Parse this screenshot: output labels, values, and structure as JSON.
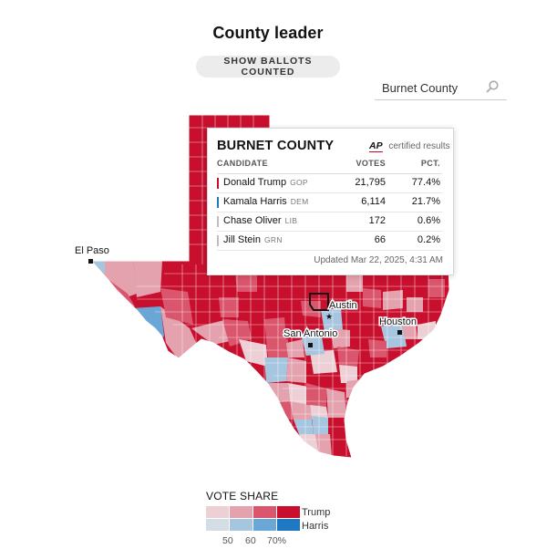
{
  "header": {
    "title": "County leader"
  },
  "toggle": {
    "label": "SHOW BALLOTS COUNTED"
  },
  "search": {
    "value": "Burnet County",
    "icon": "search-icon"
  },
  "map": {
    "cities": {
      "el_paso": "El Paso",
      "austin": "Austin",
      "san_antonio": "San Antonio",
      "houston": "Houston"
    },
    "colors": {
      "trump_strong": "#c8102e",
      "trump_mid": "#d9566d",
      "trump_light": "#e3a2ae",
      "trump_faint": "#ecd0d6",
      "harris_faint": "#d3dde6",
      "harris_light": "#a6c6e0",
      "harris_mid": "#6aa6d6",
      "harris_strong": "#1e78c2",
      "highlight_outline": "#121212"
    },
    "highlighted_county": "Burnet County"
  },
  "tooltip": {
    "county": "BURNET COUNTY",
    "ap_logo": "AP",
    "certified": "certified results",
    "columns": {
      "candidate": "CANDIDATE",
      "votes": "VOTES",
      "pct": "PCT."
    },
    "rows": [
      {
        "name": "Donald Trump",
        "party": "GOP",
        "votes": "21,795",
        "pct": "77.4%",
        "color": "#c8102e"
      },
      {
        "name": "Kamala Harris",
        "party": "DEM",
        "votes": "6,114",
        "pct": "21.7%",
        "color": "#1e78c2"
      },
      {
        "name": "Chase Oliver",
        "party": "LIB",
        "votes": "172",
        "pct": "0.6%",
        "color": "#bfbfbf"
      },
      {
        "name": "Jill Stein",
        "party": "GRN",
        "votes": "66",
        "pct": "0.2%",
        "color": "#bfbfbf"
      }
    ],
    "updated": "Updated Mar 22, 2025, 4:31 AM"
  },
  "legend": {
    "title": "VOTE SHARE",
    "trump_label": "Trump",
    "harris_label": "Harris",
    "ticks": [
      "50",
      "60",
      "70%"
    ],
    "trump_colors": [
      "#ecd0d6",
      "#e3a2ae",
      "#d9566d",
      "#c8102e"
    ],
    "harris_colors": [
      "#d3dde6",
      "#a6c6e0",
      "#6aa6d6",
      "#1e78c2"
    ]
  }
}
